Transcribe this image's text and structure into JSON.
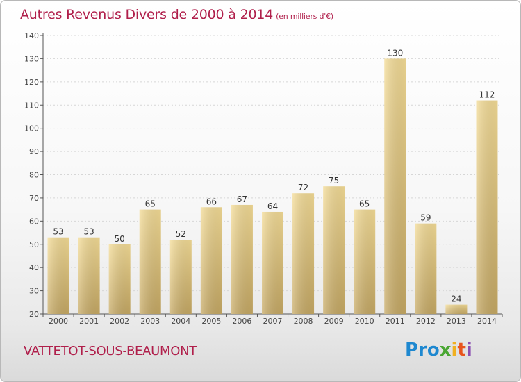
{
  "title": "Autres Revenus Divers de 2000 à 2014",
  "subtitle": "(en milliers d'€)",
  "city": "VATTETOT-SOUS-BEAUMONT",
  "logo": {
    "p1": "Pro",
    "p2": "x",
    "p3": "i",
    "p4": "t",
    "p5": "i"
  },
  "colors": {
    "title": "#b01f4b",
    "bar_light": "#f4dc96",
    "bar_dark": "#c6a964"
  },
  "chart_data": {
    "type": "bar",
    "categories": [
      "2000",
      "2001",
      "2002",
      "2003",
      "2004",
      "2005",
      "2006",
      "2007",
      "2008",
      "2009",
      "2010",
      "2011",
      "2012",
      "2013",
      "2014"
    ],
    "values": [
      53,
      53,
      50,
      65,
      52,
      66,
      67,
      64,
      72,
      75,
      65,
      130,
      59,
      24,
      112
    ],
    "ylim": [
      20,
      140
    ],
    "yticks": [
      20,
      30,
      40,
      50,
      60,
      70,
      80,
      90,
      100,
      110,
      120,
      130,
      140
    ],
    "grid": true
  }
}
